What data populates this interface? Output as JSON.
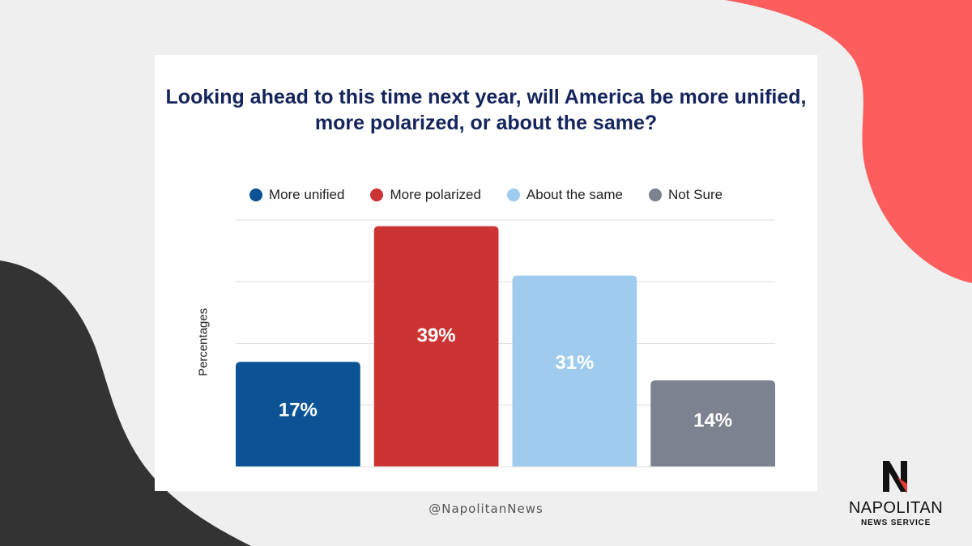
{
  "chart_data": {
    "type": "bar",
    "title": "Looking ahead to this time next year, will America be more unified, more polarized, or about the same?",
    "ylabel": "Percentages",
    "ylim": [
      0,
      40
    ],
    "grid": true,
    "legend_placement": "top-center",
    "categories": [
      "More unified",
      "More polarized",
      "About the same",
      "Not Sure"
    ],
    "values": [
      17,
      39,
      31,
      14
    ],
    "value_labels": [
      "17%",
      "39%",
      "31%",
      "14%"
    ],
    "colors": [
      "#0b5394",
      "#cc3333",
      "#9fcbef",
      "#7c8290"
    ]
  },
  "footer": {
    "handle": "@NapolitanNews"
  },
  "logo": {
    "name": "NAPOLITAN",
    "subtitle": "NEWS SERVICE"
  },
  "theme": {
    "accent": "#fe5d5d",
    "dark": "#333333",
    "title_color": "#14245c"
  }
}
